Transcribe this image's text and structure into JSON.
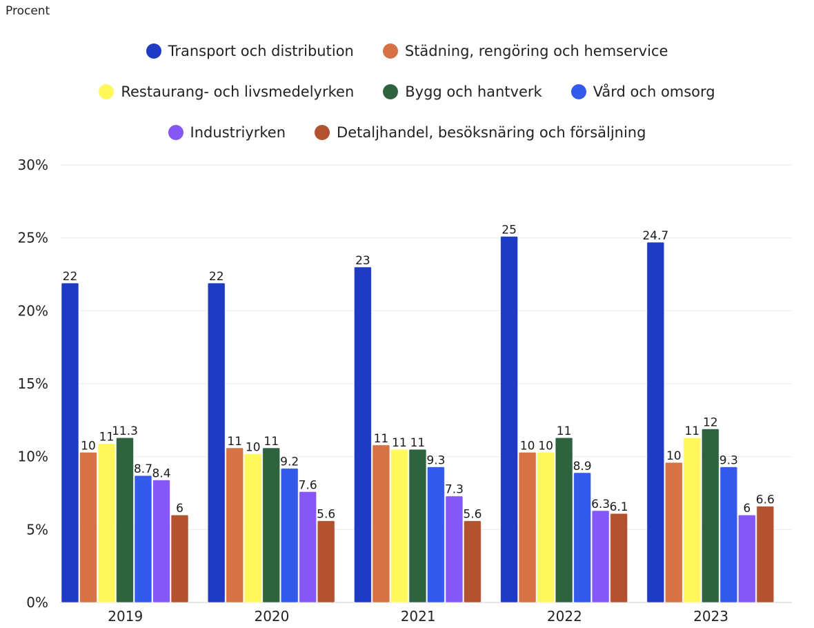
{
  "chart_data": {
    "type": "bar",
    "title": "",
    "unit_label": "Procent",
    "xlabel": "",
    "ylabel": "Procent",
    "ylim": [
      0,
      30
    ],
    "yticks": [
      0,
      5,
      10,
      15,
      20,
      25,
      30
    ],
    "ytick_labels": [
      "0%",
      "5%",
      "10%",
      "15%",
      "20%",
      "25%",
      "30%"
    ],
    "grid": true,
    "legend_position": "top-center",
    "categories": [
      "2019",
      "2020",
      "2021",
      "2022",
      "2023"
    ],
    "series": [
      {
        "name": "Transport och distribution",
        "color": "#1f3bc4",
        "values": [
          21.9,
          21.9,
          23.0,
          25.1,
          24.7
        ],
        "labels": [
          "22",
          "22",
          "23",
          "25",
          "24.7"
        ]
      },
      {
        "name": "Städning, rengöring och hemservice",
        "color": "#d67244",
        "values": [
          10.3,
          10.6,
          10.8,
          10.3,
          9.6
        ],
        "labels": [
          "10",
          "11",
          "11",
          "10",
          "10"
        ]
      },
      {
        "name": "Restaurang- och livsmedelyrken",
        "color": "#fff85c",
        "values": [
          10.9,
          10.2,
          10.5,
          10.3,
          11.3
        ],
        "labels": [
          "11",
          "10",
          "11",
          "10",
          "11"
        ]
      },
      {
        "name": "Bygg och hantverk",
        "color": "#2f6340",
        "values": [
          11.3,
          10.6,
          10.5,
          11.3,
          11.9
        ],
        "labels": [
          "11.3",
          "11",
          "11",
          "11",
          "12"
        ]
      },
      {
        "name": "Vård och omsorg",
        "color": "#345aeb",
        "values": [
          8.7,
          9.2,
          9.3,
          8.9,
          9.3
        ],
        "labels": [
          "8.7",
          "9.2",
          "9.3",
          "8.9",
          "9.3"
        ]
      },
      {
        "name": "Industriyrken",
        "color": "#8557f6",
        "values": [
          8.4,
          7.6,
          7.3,
          6.3,
          6.0
        ],
        "labels": [
          "8.4",
          "7.6",
          "7.3",
          "6.3",
          "6"
        ]
      },
      {
        "name": "Detaljhandel, besöksnäring och försäljning",
        "color": "#b3522e",
        "values": [
          6.0,
          5.6,
          5.6,
          6.1,
          6.6
        ],
        "labels": [
          "6",
          "5.6",
          "5.6",
          "6.1",
          "6.6"
        ]
      }
    ],
    "legend_rows": [
      [
        0,
        1
      ],
      [
        2,
        3,
        4
      ],
      [
        5,
        6
      ]
    ]
  }
}
